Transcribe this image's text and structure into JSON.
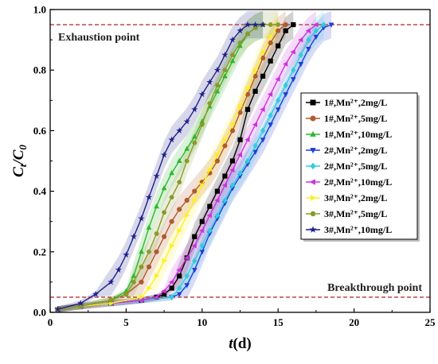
{
  "chart_data": {
    "type": "line",
    "title": "",
    "xlabel": "t(d)",
    "xlabel_main": "t",
    "xlabel_unit": "(d)",
    "ylabel": "Ct/C0",
    "ylabel_main": "C",
    "ylabel_sub1": "t",
    "ylabel_slash": "/C",
    "ylabel_sub2": "0",
    "xlim": [
      0,
      25
    ],
    "ylim": [
      0,
      1.0
    ],
    "xticks": [
      "0",
      "5",
      "10",
      "15",
      "20",
      "25"
    ],
    "yticks": [
      "0.0",
      "0.2",
      "0.4",
      "0.6",
      "0.8",
      "1.0"
    ],
    "grid": false,
    "legend_position": "right",
    "annotations": [
      {
        "text": "Exhaustion point",
        "y": 0.95
      },
      {
        "text": "Breakthrough point",
        "y": 0.05
      }
    ],
    "reference_lines": [
      0.05,
      0.95
    ],
    "reference_color": "#b03a2e",
    "series": [
      {
        "name": "1#,Mn²⁺,2mg/L",
        "color": "#000000",
        "marker": "square",
        "x": [
          0.5,
          2,
          4,
          6,
          7,
          7.5,
          8,
          8.5,
          9,
          9.5,
          10,
          10.5,
          11,
          11.5,
          12,
          12.5,
          13,
          13.5,
          14,
          14.5,
          15,
          15.5,
          16
        ],
        "y": [
          0.01,
          0.02,
          0.03,
          0.04,
          0.05,
          0.06,
          0.08,
          0.12,
          0.18,
          0.25,
          0.3,
          0.35,
          0.4,
          0.45,
          0.5,
          0.57,
          0.67,
          0.73,
          0.78,
          0.83,
          0.88,
          0.93,
          0.95
        ]
      },
      {
        "name": "1#,Mn²⁺,5mg/L",
        "color": "#b05a2e",
        "marker": "circle",
        "x": [
          0.5,
          2,
          4,
          5,
          6,
          6.5,
          7,
          7.5,
          8,
          8.5,
          9,
          9.5,
          10,
          10.5,
          11,
          11.5,
          12,
          12.5,
          13,
          13.5,
          14,
          14.5,
          15,
          15.5
        ],
        "y": [
          0.01,
          0.02,
          0.04,
          0.06,
          0.1,
          0.15,
          0.2,
          0.25,
          0.3,
          0.34,
          0.37,
          0.4,
          0.43,
          0.46,
          0.5,
          0.55,
          0.6,
          0.66,
          0.72,
          0.78,
          0.84,
          0.89,
          0.93,
          0.95
        ]
      },
      {
        "name": "1#,Mn²⁺,10mg/L",
        "color": "#2db82d",
        "marker": "triangle-up",
        "x": [
          0.5,
          2,
          4,
          5,
          5.5,
          6,
          6.5,
          7,
          7.5,
          8,
          8.5,
          9,
          9.5,
          10,
          10.5,
          11,
          11.5,
          12,
          12.5,
          13,
          13.5,
          14
        ],
        "y": [
          0.01,
          0.02,
          0.04,
          0.07,
          0.12,
          0.2,
          0.28,
          0.35,
          0.41,
          0.46,
          0.5,
          0.54,
          0.58,
          0.63,
          0.68,
          0.73,
          0.78,
          0.83,
          0.88,
          0.92,
          0.94,
          0.95
        ]
      },
      {
        "name": "2#,Mn²⁺,2mg/L",
        "color": "#1f3fd6",
        "marker": "triangle-down",
        "x": [
          0.5,
          2,
          4,
          6,
          8,
          8.5,
          9,
          9.5,
          10,
          10.5,
          11,
          11.5,
          12,
          12.5,
          13,
          13.5,
          14,
          14.5,
          15,
          15.5,
          16,
          16.5,
          17,
          17.5,
          18,
          18.5
        ],
        "y": [
          0.01,
          0.02,
          0.03,
          0.04,
          0.05,
          0.06,
          0.09,
          0.14,
          0.2,
          0.26,
          0.31,
          0.36,
          0.41,
          0.45,
          0.49,
          0.53,
          0.57,
          0.62,
          0.67,
          0.72,
          0.77,
          0.82,
          0.87,
          0.91,
          0.94,
          0.95
        ]
      },
      {
        "name": "2#,Mn²⁺,5mg/L",
        "color": "#33ccdd",
        "marker": "diamond",
        "x": [
          0.5,
          2,
          4,
          6,
          8,
          8.5,
          9,
          9.5,
          10,
          10.5,
          11,
          11.5,
          12,
          12.5,
          13,
          13.5,
          14,
          14.5,
          15,
          15.5,
          16,
          16.5,
          17,
          17.5,
          18
        ],
        "y": [
          0.01,
          0.02,
          0.03,
          0.04,
          0.05,
          0.08,
          0.12,
          0.17,
          0.22,
          0.27,
          0.32,
          0.37,
          0.42,
          0.46,
          0.5,
          0.55,
          0.6,
          0.65,
          0.7,
          0.75,
          0.8,
          0.85,
          0.9,
          0.93,
          0.95
        ]
      },
      {
        "name": "2#,Mn²⁺,10mg/L",
        "color": "#cc33dd",
        "marker": "triangle-left",
        "x": [
          0.5,
          2,
          4,
          6,
          7,
          7.5,
          8,
          8.5,
          9,
          9.5,
          10,
          10.5,
          11,
          11.5,
          12,
          12.5,
          13,
          13.5,
          14,
          14.5,
          15,
          15.5,
          16,
          16.5,
          17,
          17.5
        ],
        "y": [
          0.01,
          0.02,
          0.03,
          0.04,
          0.05,
          0.07,
          0.1,
          0.14,
          0.18,
          0.22,
          0.27,
          0.32,
          0.37,
          0.42,
          0.47,
          0.52,
          0.57,
          0.62,
          0.67,
          0.72,
          0.77,
          0.82,
          0.86,
          0.9,
          0.93,
          0.95
        ]
      },
      {
        "name": "3#,Mn²⁺,2mg/L",
        "color": "#ffee22",
        "marker": "triangle-right",
        "x": [
          0.5,
          2,
          4,
          6,
          6.5,
          7,
          7.5,
          8,
          8.5,
          9,
          9.5,
          10,
          10.5,
          11,
          11.5,
          12,
          12.5,
          13,
          13.5,
          14,
          14.5,
          15
        ],
        "y": [
          0.01,
          0.02,
          0.03,
          0.05,
          0.08,
          0.12,
          0.17,
          0.22,
          0.27,
          0.32,
          0.37,
          0.42,
          0.47,
          0.52,
          0.57,
          0.62,
          0.68,
          0.74,
          0.8,
          0.86,
          0.91,
          0.95
        ]
      },
      {
        "name": "3#,Mn²⁺,5mg/L",
        "color": "#8a9a2a",
        "marker": "hexagon",
        "x": [
          0.5,
          2,
          4,
          5,
          5.5,
          6,
          6.5,
          7,
          7.5,
          8,
          8.5,
          9,
          9.5,
          10,
          10.5,
          11,
          11.5,
          12,
          12.5,
          13,
          13.5,
          14,
          14.5,
          15
        ],
        "y": [
          0.01,
          0.02,
          0.04,
          0.06,
          0.1,
          0.15,
          0.2,
          0.26,
          0.33,
          0.38,
          0.43,
          0.5,
          0.56,
          0.62,
          0.69,
          0.75,
          0.8,
          0.85,
          0.89,
          0.92,
          0.94,
          0.95,
          0.95,
          0.95
        ]
      },
      {
        "name": "3#,Mn²⁺,10mg/L",
        "color": "#1f1f8a",
        "marker": "star",
        "x": [
          0.5,
          2,
          3,
          4,
          4.5,
          5,
          5.5,
          6,
          6.5,
          7,
          7.5,
          8,
          8.5,
          9,
          9.5,
          10,
          10.5,
          11,
          11.5,
          12,
          12.5,
          13,
          13.5,
          14
        ],
        "y": [
          0.01,
          0.03,
          0.06,
          0.1,
          0.14,
          0.19,
          0.25,
          0.31,
          0.38,
          0.45,
          0.52,
          0.57,
          0.6,
          0.63,
          0.67,
          0.72,
          0.76,
          0.8,
          0.85,
          0.9,
          0.93,
          0.95,
          0.95,
          0.95
        ]
      }
    ]
  }
}
